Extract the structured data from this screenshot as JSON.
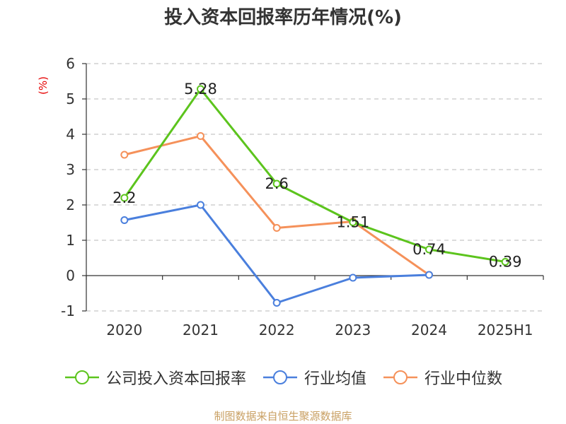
{
  "title": "投入资本回报率历年情况(%)",
  "unit_label": "(%)",
  "source": "制图数据来自恒生聚源数据库",
  "colors": {
    "company": "#5cc41d",
    "industry_avg": "#4a7fdd",
    "industry_median": "#f5915a"
  },
  "chart_data": {
    "type": "line",
    "title": "投入资本回报率历年情况(%)",
    "ylabel": "(%)",
    "categories": [
      "2020",
      "2021",
      "2022",
      "2023",
      "2024",
      "2025H1"
    ],
    "ylim": [
      -1,
      6
    ],
    "yticks": [
      -1,
      0,
      1,
      2,
      3,
      4,
      5,
      6
    ],
    "grid": true,
    "legend_position": "bottom",
    "series": [
      {
        "name": "公司投入资本回报率",
        "key": "company",
        "values": [
          2.2,
          5.28,
          2.6,
          1.51,
          0.74,
          0.39
        ],
        "labels": [
          "2.2",
          "5.28",
          "2.6",
          "1.51",
          "0.74",
          "0.39"
        ]
      },
      {
        "name": "行业均值",
        "key": "industry_avg",
        "values": [
          1.57,
          2.0,
          -0.77,
          -0.06,
          0.02,
          null
        ]
      },
      {
        "name": "行业中位数",
        "key": "industry_median",
        "values": [
          3.42,
          3.95,
          1.35,
          1.53,
          0.02,
          null
        ]
      }
    ]
  }
}
